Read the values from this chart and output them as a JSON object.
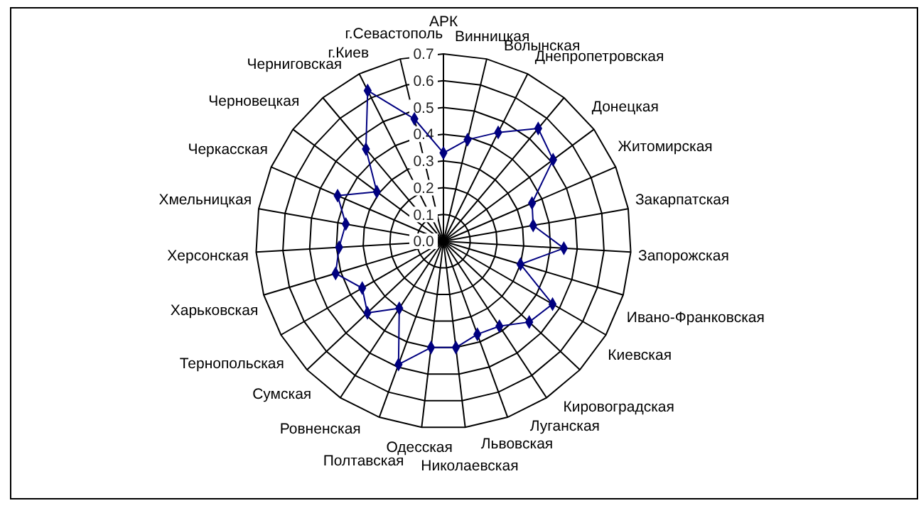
{
  "chart_data": {
    "type": "radar",
    "categories": [
      "АРК",
      "Винницкая",
      "Волынская",
      "Днепропетровская",
      "Донецкая",
      "Житомирская",
      "Закарпатская",
      "Запорожская",
      "Ивано-Франковская",
      "Киевская",
      "Кировоградская",
      "Луганская",
      "Львовская",
      "Николаевская",
      "Одесская",
      "Полтавская",
      "Ровненская",
      "Сумская",
      "Тернопольская",
      "Харьковская",
      "Херсонская",
      "Хмельницкая",
      "Черкасская",
      "Черновецкая",
      "Черниговская",
      "г.Киев",
      "г.Севастополь"
    ],
    "series": [
      {
        "color": "#000080",
        "values": [
          0.33,
          0.39,
          0.455,
          0.55,
          0.51,
          0.36,
          0.34,
          0.45,
          0.3,
          0.47,
          0.44,
          0.38,
          0.37,
          0.4,
          0.4,
          0.49,
          0.3,
          0.39,
          0.35,
          0.42,
          0.39,
          0.37,
          0.43,
          0.31,
          0.45,
          0.63,
          0.47
        ]
      }
    ],
    "ylim": [
      0,
      0.7
    ],
    "yticks": [
      {
        "value": 0,
        "label": "0.0"
      },
      0.1,
      0.2,
      0.3,
      0.4,
      0.5,
      0.6,
      0.7
    ],
    "grid": true,
    "marker": "diamond",
    "line_style": "solid",
    "legend": false
  }
}
